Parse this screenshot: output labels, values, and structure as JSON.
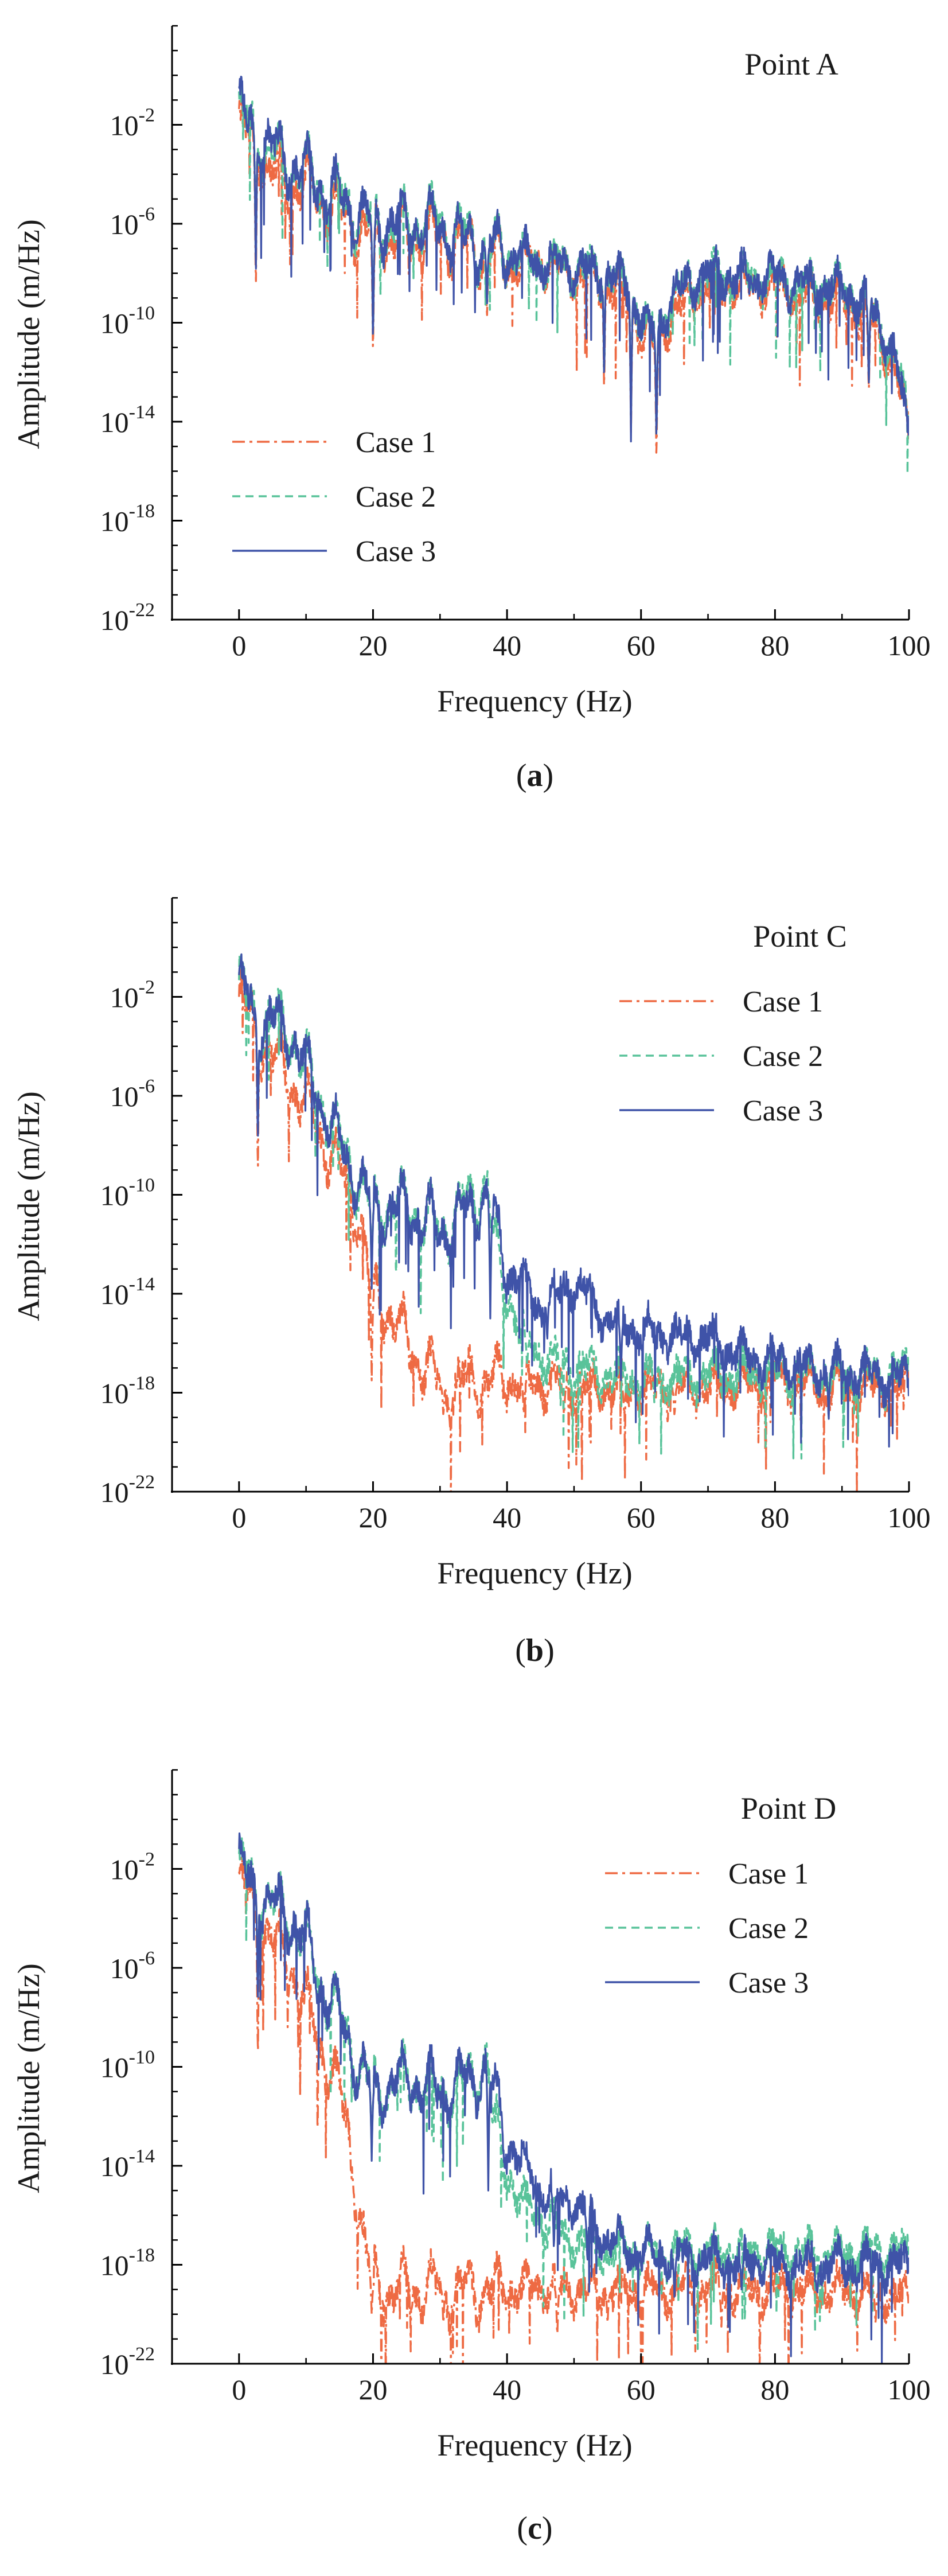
{
  "chart_data": [
    {
      "type": "line",
      "panel_label": "a",
      "title": "Point A",
      "xlabel": "Frequency (Hz)",
      "ylabel": "Amplitude (m/Hz)",
      "xlim": [
        -10,
        100
      ],
      "ylim_log10": [
        -22,
        2
      ],
      "x_ticks": [
        0,
        20,
        40,
        60,
        80,
        100
      ],
      "x_tick_labels": [
        "0",
        "20",
        "40",
        "60",
        "80",
        "100"
      ],
      "y_tick_exponents": [
        -22,
        -18,
        -14,
        -10,
        -6,
        -2
      ],
      "y_tick_mantissa": "10",
      "legend_position": "bottom-left",
      "series": [
        {
          "name": "Case  1",
          "color": "#ee6a43",
          "dash": "dashdot",
          "envelope_hz": [
            0,
            3,
            5,
            10,
            15,
            20,
            25,
            30,
            35,
            40,
            45,
            50,
            55,
            58,
            60,
            62,
            65,
            70,
            75,
            80,
            85,
            90,
            95,
            98,
            100
          ],
          "envelope_log10": [
            -2,
            -3,
            -4,
            -4.5,
            -5.5,
            -6.5,
            -6.5,
            -6.5,
            -7,
            -7.5,
            -7.5,
            -8,
            -8.5,
            -9,
            -10.5,
            -11,
            -9.5,
            -8.5,
            -8.5,
            -8.5,
            -9,
            -9,
            -10,
            -12,
            -14.5
          ],
          "deep_notches": [
            [
              2.5,
              -9
            ],
            [
              20,
              -11.5
            ],
            [
              37,
              -10
            ],
            [
              54.5,
              -13
            ],
            [
              58.5,
              -14.5
            ],
            [
              62.3,
              -15.8
            ],
            [
              94,
              -13
            ]
          ]
        },
        {
          "name": "Case  2",
          "color": "#59c39a",
          "dash": "dashed",
          "envelope_hz": [
            0,
            3,
            5,
            10,
            15,
            20,
            25,
            30,
            35,
            40,
            45,
            50,
            55,
            58,
            60,
            62,
            65,
            70,
            75,
            80,
            85,
            90,
            95,
            98,
            100
          ],
          "envelope_log10": [
            -1.5,
            -2.5,
            -3.2,
            -4,
            -5,
            -6,
            -6,
            -6,
            -6.8,
            -7.2,
            -7.5,
            -7.8,
            -8,
            -8.5,
            -9.8,
            -10.5,
            -8.8,
            -8,
            -8.2,
            -8.2,
            -8.5,
            -8.6,
            -9.5,
            -11.5,
            -14
          ],
          "deep_notches": [
            [
              2.5,
              -8
            ],
            [
              20,
              -11
            ],
            [
              37,
              -9.5
            ],
            [
              54.5,
              -12.5
            ],
            [
              58.5,
              -14
            ],
            [
              62.3,
              -15
            ],
            [
              94,
              -12.5
            ]
          ]
        },
        {
          "name": "Case  3",
          "color": "#3f53a8",
          "dash": "solid",
          "envelope_hz": [
            0,
            3,
            5,
            10,
            15,
            20,
            25,
            30,
            35,
            40,
            45,
            50,
            55,
            58,
            60,
            62,
            65,
            70,
            75,
            80,
            85,
            90,
            95,
            98,
            100
          ],
          "envelope_log10": [
            -1.5,
            -2.5,
            -3,
            -4,
            -5,
            -6,
            -6,
            -6,
            -6.8,
            -7.2,
            -7.5,
            -7.8,
            -8,
            -8.5,
            -9.8,
            -10.5,
            -8.8,
            -8,
            -8.2,
            -8.2,
            -8.5,
            -8.6,
            -9.5,
            -11.5,
            -14.5
          ],
          "deep_notches": [
            [
              2.5,
              -8.5
            ],
            [
              20,
              -11
            ],
            [
              37,
              -9.5
            ],
            [
              54.5,
              -12.5
            ],
            [
              58.5,
              -14.8
            ],
            [
              62.3,
              -15
            ],
            [
              94,
              -12.8
            ]
          ]
        }
      ]
    },
    {
      "type": "line",
      "panel_label": "b",
      "title": "Point C",
      "xlabel": "Frequency (Hz)",
      "ylabel": "Amplitude (m/Hz)",
      "xlim": [
        -10,
        100
      ],
      "ylim_log10": [
        -22,
        2
      ],
      "x_ticks": [
        0,
        20,
        40,
        60,
        80,
        100
      ],
      "x_tick_labels": [
        "0",
        "20",
        "40",
        "60",
        "80",
        "100"
      ],
      "y_tick_exponents": [
        -22,
        -18,
        -14,
        -10,
        -6,
        -2
      ],
      "y_tick_mantissa": "10",
      "legend_position": "top-right",
      "series": [
        {
          "name": "Case  1",
          "color": "#ee6a43",
          "dash": "dashdot",
          "envelope_hz": [
            0,
            3,
            5,
            8,
            10,
            12,
            15,
            18,
            20,
            22,
            25,
            28,
            30,
            35,
            40,
            50,
            60,
            70,
            80,
            90,
            100
          ],
          "envelope_log10": [
            -2,
            -3.5,
            -4.5,
            -5.5,
            -6.5,
            -7.5,
            -9,
            -11,
            -14,
            -14.5,
            -16,
            -17,
            -17.8,
            -17.5,
            -17.5,
            -17.8,
            -17.8,
            -17.8,
            -17.5,
            -17.8,
            -17.8
          ],
          "deep_notches": [
            [
              2.8,
              -9.5
            ],
            [
              19.8,
              -17.5
            ],
            [
              30.5,
              -19
            ],
            [
              42.5,
              -19
            ],
            [
              48.5,
              -19
            ],
            [
              57.5,
              -19
            ],
            [
              65,
              -19
            ]
          ]
        },
        {
          "name": "Case  2",
          "color": "#59c39a",
          "dash": "dashed",
          "envelope_hz": [
            0,
            3,
            5,
            8,
            10,
            12,
            15,
            18,
            20,
            25,
            28,
            30,
            35,
            37,
            38,
            40,
            42,
            45,
            50,
            55,
            60,
            70,
            80,
            90,
            100
          ],
          "envelope_log10": [
            -1.5,
            -3,
            -3,
            -3.5,
            -5,
            -6,
            -8,
            -9.5,
            -10.5,
            -10.5,
            -11,
            -11.5,
            -10,
            -9.5,
            -12,
            -14,
            -15.5,
            -16.5,
            -17,
            -17.3,
            -17.5,
            -17.3,
            -17.2,
            -17.3,
            -17.2
          ],
          "deep_notches": [
            [
              2.8,
              -8
            ],
            [
              19.8,
              -13.5
            ],
            [
              43,
              -17
            ],
            [
              48,
              -18.5
            ],
            [
              62,
              -18.5
            ],
            [
              96.5,
              -19
            ]
          ]
        },
        {
          "name": "Case  3",
          "color": "#3f53a8",
          "dash": "solid",
          "envelope_hz": [
            0,
            3,
            5,
            8,
            10,
            12,
            15,
            18,
            20,
            25,
            28,
            30,
            35,
            37,
            40,
            45,
            50,
            55,
            60,
            65,
            70,
            75,
            80,
            85,
            90,
            95,
            100
          ],
          "envelope_log10": [
            -1.5,
            -3,
            -3,
            -3.5,
            -5,
            -6,
            -8,
            -9.5,
            -10.5,
            -10.5,
            -11,
            -11.5,
            -10.5,
            -10,
            -13,
            -14.5,
            -13.5,
            -15,
            -15.5,
            -15.8,
            -15.8,
            -16.5,
            -16.8,
            -17,
            -17.2,
            -17.3,
            -17.5
          ],
          "deep_notches": [
            [
              2.8,
              -8.2
            ],
            [
              19.8,
              -13.8
            ],
            [
              37.5,
              -15
            ],
            [
              46,
              -16
            ],
            [
              57,
              -17.5
            ],
            [
              88,
              -19.3
            ]
          ]
        }
      ]
    },
    {
      "type": "line",
      "panel_label": "c",
      "title": "Point D",
      "xlabel": "Frequency (Hz)",
      "ylabel": "Amplitude (m/Hz)",
      "xlim": [
        -10,
        100
      ],
      "ylim_log10": [
        -22,
        2
      ],
      "x_ticks": [
        0,
        20,
        40,
        60,
        80,
        100
      ],
      "x_tick_labels": [
        "0",
        "20",
        "40",
        "60",
        "80",
        "100"
      ],
      "y_tick_exponents": [
        -22,
        -18,
        -14,
        -10,
        -6,
        -2
      ],
      "y_tick_mantissa": "10",
      "legend_position": "top-right",
      "series": [
        {
          "name": "Case  1",
          "color": "#ee6a43",
          "dash": "dashdot",
          "envelope_hz": [
            0,
            3,
            5,
            8,
            10,
            12,
            15,
            17,
            19,
            20,
            22,
            25,
            30,
            40,
            50,
            60,
            70,
            80,
            90,
            100
          ],
          "envelope_log10": [
            -2.5,
            -4,
            -5,
            -6,
            -7.5,
            -9,
            -11,
            -14,
            -17.5,
            -18.8,
            -19,
            -19,
            -19,
            -19,
            -19,
            -19,
            -19,
            -19,
            -19,
            -19.3
          ],
          "deep_notches": [
            [
              2.8,
              -10
            ],
            [
              19.8,
              -20
            ],
            [
              30.5,
              -20.5
            ],
            [
              47.5,
              -21
            ],
            [
              55,
              -20.5
            ],
            [
              72,
              -20.5
            ],
            [
              95,
              -20.5
            ]
          ]
        },
        {
          "name": "Case  2",
          "color": "#59c39a",
          "dash": "dashed",
          "envelope_hz": [
            0,
            3,
            5,
            8,
            10,
            12,
            15,
            18,
            20,
            25,
            30,
            35,
            37,
            38,
            40,
            42,
            45,
            50,
            55,
            60,
            70,
            80,
            90,
            100
          ],
          "envelope_log10": [
            -2,
            -3,
            -3.5,
            -4,
            -5,
            -6.5,
            -8,
            -10,
            -11,
            -10.5,
            -11,
            -10.5,
            -9.5,
            -12.5,
            -14,
            -15.5,
            -16,
            -17,
            -17.5,
            -17.5,
            -17.5,
            -17.5,
            -17.5,
            -17.5
          ],
          "deep_notches": [
            [
              2.8,
              -7.5
            ],
            [
              19.8,
              -13.5
            ],
            [
              46,
              -17.5
            ],
            [
              75.5,
              -20.5
            ],
            [
              87,
              -19.5
            ]
          ]
        },
        {
          "name": "Case  3",
          "color": "#3f53a8",
          "dash": "solid",
          "envelope_hz": [
            0,
            3,
            5,
            8,
            10,
            12,
            15,
            18,
            20,
            25,
            30,
            35,
            37,
            40,
            45,
            50,
            55,
            60,
            70,
            80,
            90,
            100
          ],
          "envelope_log10": [
            -2,
            -3,
            -3.5,
            -4,
            -5,
            -6.5,
            -8,
            -10,
            -11,
            -10.5,
            -11,
            -10.5,
            -10,
            -13,
            -15,
            -15.5,
            -17,
            -17.5,
            -17.8,
            -18,
            -18,
            -18
          ],
          "deep_notches": [
            [
              2.8,
              -7.7
            ],
            [
              19.8,
              -13.8
            ],
            [
              37.2,
              -15
            ],
            [
              47,
              -17.5
            ],
            [
              52,
              -18
            ],
            [
              65,
              -19.5
            ],
            [
              75,
              -19
            ]
          ]
        }
      ]
    }
  ]
}
